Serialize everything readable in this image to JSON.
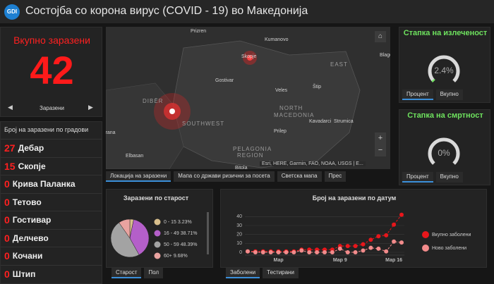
{
  "header": {
    "logo": "GDI",
    "title": "Состојба со корона вирус (COVID - 19) во Македонија"
  },
  "total": {
    "title": "Вкупно заразени",
    "value": 42,
    "nav": "Заразени"
  },
  "cities": {
    "title": "Број на заразени по градови",
    "rows": [
      {
        "count": 27,
        "name": "Дебар"
      },
      {
        "count": 15,
        "name": "Скопје"
      },
      {
        "count": 0,
        "name": "Крива Паланка"
      },
      {
        "count": 0,
        "name": "Тетово"
      },
      {
        "count": 0,
        "name": "Гостивар"
      },
      {
        "count": 0,
        "name": "Делчево"
      },
      {
        "count": 0,
        "name": "Кочани"
      },
      {
        "count": 0,
        "name": "Штип"
      }
    ]
  },
  "map": {
    "labels": [
      "Prizren",
      "Kumanovo",
      "Skopje",
      "Blago",
      "EAST",
      "Gostivar",
      "Veles",
      "Štip",
      "NORTH",
      "MACEDONIA",
      "DIBËR",
      "SOUTHWEST",
      "Prilep",
      "Kavadarci",
      "Strumica",
      "irana",
      "Elbasan",
      "PELAGONIA",
      "REGION",
      "Bitola"
    ],
    "attribution": "Esri, HERE, Garmin, FAO, NOAA, USGS | E...",
    "tabs": [
      "Локација на заразени",
      "Мапа со држави ризични за посета",
      "Светска мапа",
      "Прес"
    ]
  },
  "recovered": {
    "title": "Стапка на излеченост",
    "value": 2.4,
    "value_label": "2.4%",
    "tabs": [
      "Процент",
      "Вкупно"
    ]
  },
  "deaths": {
    "title": "Стапка на смртност",
    "value": 0,
    "value_label": "0%",
    "tabs": [
      "Процент",
      "Вкупно"
    ]
  },
  "chart_data": [
    {
      "type": "pie",
      "title": "Заразени по старост",
      "categories": [
        "0 - 15",
        "16 - 49",
        "50 - 59",
        "60+"
      ],
      "values": [
        3.23,
        38.71,
        48.39,
        9.68
      ],
      "value_labels": [
        "3.23%",
        "38.71%",
        "48.39%",
        "9.68%"
      ],
      "colors": [
        "#d8bf8c",
        "#b45fc9",
        "#a3a3a3",
        "#e9a3a0"
      ],
      "tabs": [
        "Старост",
        "Пол"
      ]
    },
    {
      "type": "line",
      "title": "Број на заразени по датум",
      "categories": [
        null,
        null,
        null,
        null,
        "Мар",
        null,
        null,
        null,
        null,
        null,
        null,
        null,
        "Мар 9",
        null,
        null,
        null,
        null,
        null,
        null,
        "Мар 16",
        null
      ],
      "series": [
        {
          "name": "Вкупно заболени",
          "color": "#e8161b",
          "values": [
            1,
            1,
            1,
            1,
            1,
            1,
            1,
            3,
            3,
            3,
            3,
            3,
            7,
            7,
            7,
            9,
            14,
            18,
            19,
            31,
            42
          ]
        },
        {
          "name": "Ново заболени",
          "color": "#f28b8b",
          "values": [
            1,
            0,
            0,
            0,
            0,
            0,
            0,
            2,
            0,
            0,
            0,
            0,
            4,
            0,
            0,
            2,
            5,
            4,
            1,
            12,
            11
          ]
        }
      ],
      "ylim": [
        0,
        45
      ],
      "yticks": [
        0,
        10,
        20,
        30,
        40
      ],
      "tabs": [
        "Заболени",
        "Тестирани"
      ]
    }
  ]
}
